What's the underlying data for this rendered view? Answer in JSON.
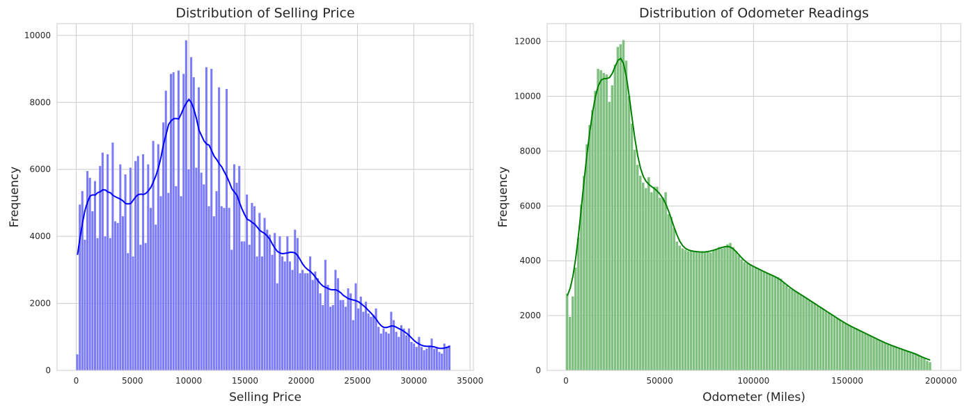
{
  "chart_data": [
    {
      "type": "bar",
      "title": "Distribution of Selling Price",
      "xlabel": "Selling Price",
      "ylabel": "Frequency",
      "xlim": [
        -1700,
        35300
      ],
      "ylim": [
        0,
        10350
      ],
      "xticks": [
        0,
        5000,
        10000,
        15000,
        20000,
        25000,
        30000,
        35000
      ],
      "xtick_labels": [
        "0",
        "5000",
        "10000",
        "15000",
        "20000",
        "25000",
        "30000",
        "35000"
      ],
      "yticks": [
        0,
        2000,
        4000,
        6000,
        8000,
        10000
      ],
      "ytick_labels": [
        "0",
        "2000",
        "4000",
        "6000",
        "8000",
        "10000"
      ],
      "bin_start": 0,
      "bin_width": 225,
      "bar_color": "#7b7bf7",
      "line_color": "#0000ff",
      "grid": true,
      "values": [
        480,
        4950,
        5350,
        3900,
        5950,
        5750,
        4750,
        5650,
        3950,
        6100,
        6500,
        4000,
        6450,
        3950,
        6800,
        4450,
        4400,
        6150,
        4600,
        5850,
        3500,
        6050,
        3400,
        6250,
        6400,
        3750,
        6450,
        3800,
        6150,
        4850,
        6850,
        4350,
        6750,
        5200,
        7400,
        8350,
        5300,
        8850,
        8900,
        5500,
        8950,
        5200,
        8850,
        9850,
        6000,
        9350,
        8750,
        6050,
        8450,
        5900,
        5550,
        9050,
        4900,
        9000,
        4600,
        5350,
        8450,
        4900,
        4850,
        8400,
        4850,
        3600,
        6150,
        5600,
        6100,
        3850,
        3850,
        5250,
        3750,
        5000,
        4900,
        3400,
        4700,
        3400,
        4550,
        4200,
        4050,
        3450,
        4100,
        2600,
        4000,
        3400,
        3250,
        4000,
        3250,
        3000,
        4200,
        3950,
        2900,
        3000,
        2900,
        2900,
        3400,
        2700,
        2950,
        2750,
        2300,
        1950,
        3300,
        2550,
        1900,
        1950,
        3000,
        2750,
        2100,
        2100,
        1900,
        2450,
        2300,
        1500,
        2600,
        1850,
        2200,
        1750,
        2050,
        1700,
        1600,
        1650,
        1850,
        1300,
        1100,
        1250,
        1150,
        1100,
        1750,
        1500,
        1150,
        1000,
        1350,
        1250,
        1050,
        1250,
        850,
        800,
        700,
        1000,
        700,
        600,
        650,
        700,
        950,
        650,
        700,
        550,
        500,
        800,
        700,
        750
      ]
    },
    {
      "type": "bar",
      "title": "Distribution of Odometer Readings",
      "xlabel": "Odometer (Miles)",
      "ylabel": "Frequency",
      "xlim": [
        -10000,
        210500
      ],
      "ylim": [
        0,
        12650
      ],
      "xticks": [
        0,
        50000,
        100000,
        150000,
        200000
      ],
      "xtick_labels": [
        "0",
        "50000",
        "100000",
        "150000",
        "200000"
      ],
      "yticks": [
        0,
        2000,
        4000,
        6000,
        8000,
        10000,
        12000
      ],
      "ytick_labels": [
        "0",
        "2000",
        "4000",
        "6000",
        "8000",
        "10000",
        "12000"
      ],
      "bin_start": 0,
      "bin_width": 1500,
      "bar_color": "#7fbf7f",
      "line_color": "#008000",
      "grid": true,
      "values": [
        2800,
        1950,
        2700,
        3750,
        4850,
        6050,
        7100,
        8250,
        8950,
        9500,
        10200,
        11000,
        10950,
        10850,
        10800,
        9800,
        10400,
        11150,
        11800,
        11900,
        12050,
        11300,
        10000,
        9000,
        8050,
        7500,
        7100,
        6850,
        6650,
        7050,
        6500,
        6700,
        6700,
        6300,
        6300,
        6500,
        5700,
        5600,
        5200,
        4700,
        4550,
        4450,
        4400,
        4350,
        4350,
        4350,
        4350,
        4300,
        4300,
        4300,
        4350,
        4300,
        4400,
        4400,
        4500,
        4450,
        4500,
        4600,
        4650,
        4500,
        4350,
        4200,
        4050,
        3950,
        3900,
        3850,
        3800,
        3750,
        3700,
        3650,
        3600,
        3550,
        3500,
        3450,
        3400,
        3400,
        3350,
        3200,
        3100,
        3000,
        2950,
        2900,
        2850,
        2750,
        2700,
        2650,
        2550,
        2500,
        2450,
        2350,
        2300,
        2250,
        2150,
        2100,
        2050,
        1950,
        1900,
        1850,
        1750,
        1700,
        1650,
        1600,
        1550,
        1500,
        1450,
        1400,
        1350,
        1300,
        1250,
        1200,
        1150,
        1100,
        1050,
        1000,
        950,
        900,
        900,
        850,
        800,
        750,
        750,
        700,
        650,
        650,
        600,
        550,
        500,
        450,
        350,
        300
      ]
    }
  ]
}
